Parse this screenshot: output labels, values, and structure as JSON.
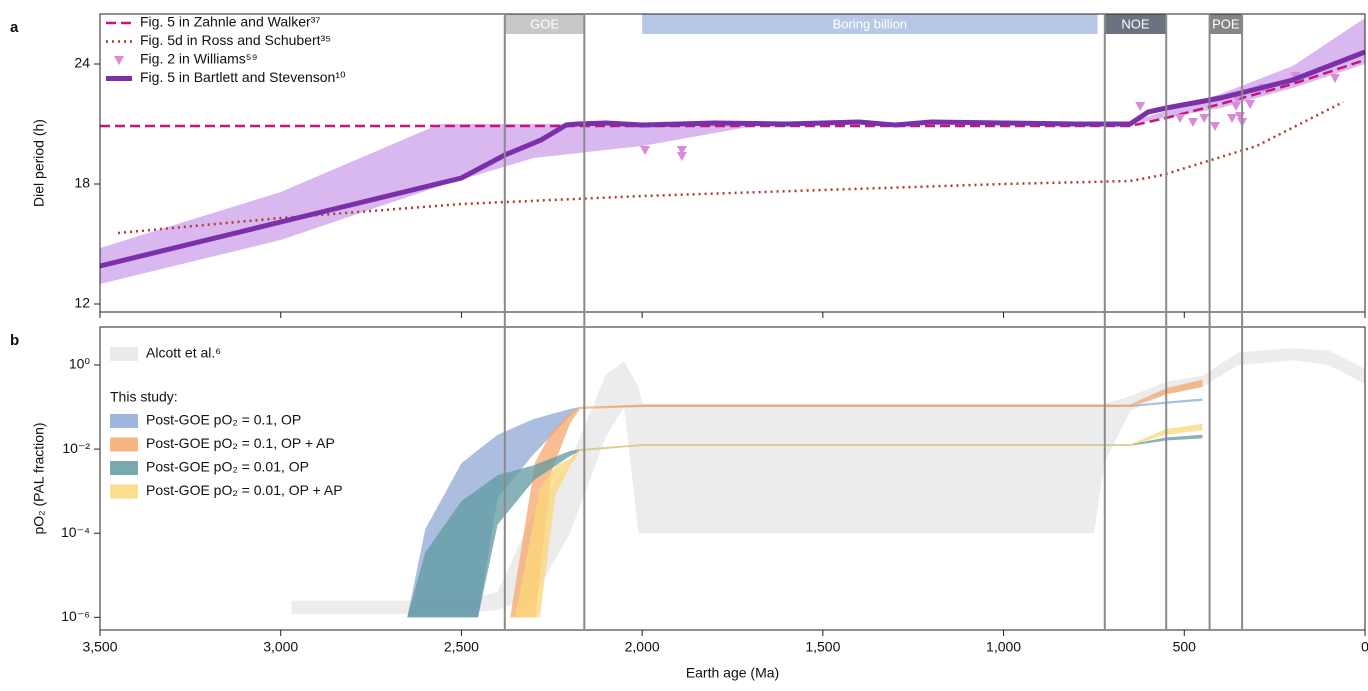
{
  "chart_data": [
    {
      "type": "line",
      "panel_label": "a",
      "ylabel": "Diel period (h)",
      "xlim": [
        3500,
        0
      ],
      "ylim": [
        11.6,
        26.5
      ],
      "yticks": [
        12,
        18,
        24
      ],
      "eras": [
        {
          "label": "GOE",
          "start": 2380,
          "end": 2160,
          "color": "#c8c8c8",
          "boundaries": true
        },
        {
          "label": "Boring billion",
          "start": 2000,
          "end": 740,
          "color": "#b7c8e6",
          "boundaries": false
        },
        {
          "label": "NOE",
          "start": 720,
          "end": 550,
          "color": "#6b7380",
          "boundaries": true
        },
        {
          "label": "POE",
          "start": 430,
          "end": 340,
          "color": "#858585",
          "boundaries": true
        }
      ],
      "series": [
        {
          "style": "band",
          "color": "#d9b8f0",
          "x": [
            3500,
            3000,
            2560,
            2300,
            2000,
            1660
          ],
          "upper": [
            14.8,
            17.6,
            21.0,
            21.0,
            21.0,
            21.0
          ],
          "lower": [
            13.0,
            15.2,
            17.9,
            19.3,
            19.9,
            21.0
          ]
        },
        {
          "style": "band",
          "color": "#d9b8f0",
          "x": [
            650,
            400,
            200,
            0
          ],
          "upper": [
            21.1,
            22.5,
            23.9,
            26.3
          ],
          "lower": [
            21.0,
            21.8,
            22.8,
            24.0
          ]
        },
        {
          "name": "Fig. 5 in Zahnle and Walker³⁷",
          "style": "dashed",
          "color": "#c8157d",
          "x": [
            3500,
            650,
            550,
            400,
            200,
            0
          ],
          "values": [
            20.9,
            20.9,
            21.3,
            22.0,
            23.0,
            24.2
          ]
        },
        {
          "name": "Fig. 5d in Ross and Schubert³⁵",
          "style": "dotted",
          "color": "#b03a2e",
          "x": [
            3450,
            3000,
            2500,
            2000,
            1500,
            1000,
            650,
            560,
            300,
            60
          ],
          "values": [
            15.55,
            16.3,
            17.0,
            17.4,
            17.7,
            18.0,
            18.15,
            18.45,
            19.9,
            22.1
          ]
        },
        {
          "name": "Fig. 2 in Williams⁵⁹",
          "style": "markers",
          "color": "#d98ad8",
          "x": [
            1992,
            1890,
            1890,
            622,
            512,
            476,
            445,
            415,
            368,
            357,
            354,
            346,
            340,
            318,
            282,
            193,
            83
          ],
          "values": [
            19.7,
            19.7,
            19.4,
            21.9,
            21.3,
            21.1,
            21.3,
            20.9,
            21.3,
            21.9,
            22.3,
            21.4,
            21.1,
            22.0,
            22.8,
            23.4,
            23.3
          ]
        },
        {
          "name": "Fig. 5 in Bartlett and Stevenson¹⁰",
          "style": "solid",
          "color": "#7b2fa8",
          "x": [
            3500,
            3000,
            2500,
            2380,
            2280,
            2210,
            2180,
            2100,
            2000,
            1800,
            1600,
            1400,
            1300,
            1200,
            1000,
            800,
            650,
            600,
            550,
            400,
            200,
            0
          ],
          "values": [
            13.9,
            16.1,
            18.3,
            19.45,
            20.2,
            20.95,
            21.0,
            21.05,
            20.95,
            21.05,
            21.0,
            21.1,
            20.95,
            21.1,
            21.05,
            21.0,
            21.0,
            21.6,
            21.8,
            22.3,
            23.2,
            24.6
          ]
        }
      ]
    },
    {
      "type": "area",
      "panel_label": "b",
      "ylabel": "pO₂ (PAL fraction)",
      "xlabel": "Earth age (Ma)",
      "xlim": [
        3500,
        0
      ],
      "xticks": [
        {
          "value": 3500,
          "label": "3,500"
        },
        {
          "value": 3000,
          "label": "3,000"
        },
        {
          "value": 2500,
          "label": "2,500"
        },
        {
          "value": 2000,
          "label": "2,000"
        },
        {
          "value": 1500,
          "label": "1,500"
        },
        {
          "value": 1000,
          "label": "1,000"
        },
        500,
        0
      ],
      "ylim": [
        5e-07,
        8
      ],
      "ylog": true,
      "yticks": [
        {
          "value": 1,
          "label": "10⁰"
        },
        {
          "value": 0.01,
          "label": "10⁻²"
        },
        {
          "value": 0.0001,
          "label": "10⁻⁴"
        },
        {
          "value": 1e-06,
          "label": "10⁻⁶"
        }
      ],
      "legend_heading": "This study:",
      "series": [
        {
          "name": "Alcott et al.⁶",
          "color": "#e6e6e6",
          "x": [
            2970,
            2500,
            2400,
            2300,
            2200,
            2100,
            2050,
            2010,
            2000,
            1500,
            750,
            720,
            650,
            550,
            450,
            350,
            200,
            100,
            0
          ],
          "lower": [
            1.2e-06,
            1.2e-06,
            1.5e-06,
            3e-06,
            0.0001,
            0.02,
            0.1,
            0.0001,
            0.0001,
            0.0001,
            0.0001,
            0.005,
            0.08,
            0.2,
            0.3,
            1.0,
            1.3,
            1.0,
            0.35
          ],
          "upper": [
            2.5e-06,
            2.5e-06,
            4e-06,
            0.0003,
            0.005,
            0.6,
            1.2,
            0.3,
            0.12,
            0.12,
            0.12,
            0.12,
            0.18,
            0.4,
            0.55,
            2.0,
            2.5,
            2.2,
            0.8
          ]
        },
        {
          "name": "Post-GOE pO₂ = 0.1, OP",
          "color": "#8fa8d6",
          "x": [
            2650,
            2600,
            2500,
            2454,
            2400,
            2300,
            2200,
            2172,
            2000,
            1500,
            1000,
            650,
            550,
            450
          ],
          "upper": [
            1e-06,
            0.000125,
            0.0046,
            0.0095,
            0.022,
            0.052,
            0.09,
            0.1,
            0.11,
            0.11,
            0.11,
            0.11,
            0.135,
            0.16
          ],
          "lower": [
            1e-06,
            1e-06,
            1e-06,
            1e-06,
            0.0007,
            0.0076,
            0.06,
            0.1,
            0.1,
            0.1,
            0.1,
            0.1,
            0.12,
            0.14
          ]
        },
        {
          "name": "Post-GOE pO₂ = 0.1, OP + AP",
          "color": "#f5a76c",
          "x": [
            2365,
            2296,
            2250,
            2200,
            2172,
            2000,
            1500,
            1000,
            650,
            550,
            450
          ],
          "upper": [
            1e-06,
            0.0049,
            0.026,
            0.072,
            0.1,
            0.115,
            0.115,
            0.115,
            0.115,
            0.28,
            0.45
          ],
          "lower": [
            1e-06,
            1e-06,
            0.003,
            0.04,
            0.09,
            0.1,
            0.1,
            0.1,
            0.1,
            0.2,
            0.3
          ]
        },
        {
          "name": "Post-GOE pO₂ = 0.01, OP",
          "color": "#5f9aa0",
          "x": [
            2650,
            2600,
            2500,
            2454,
            2400,
            2300,
            2200,
            2172,
            2000,
            1500,
            1000,
            650,
            550,
            450
          ],
          "upper": [
            1e-06,
            3.5e-05,
            0.00058,
            0.0011,
            0.0024,
            0.0041,
            0.009,
            0.01,
            0.013,
            0.013,
            0.013,
            0.013,
            0.019,
            0.022
          ],
          "lower": [
            1e-06,
            1e-06,
            1e-06,
            1e-06,
            0.00016,
            0.0018,
            0.0068,
            0.009,
            0.012,
            0.012,
            0.012,
            0.012,
            0.016,
            0.018
          ]
        },
        {
          "name": "Post-GOE pO₂ = 0.01, OP + AP",
          "color": "#fcd77a",
          "x": [
            2352,
            2283,
            2240,
            2200,
            2172,
            2000,
            1500,
            1000,
            650,
            550,
            450
          ],
          "upper": [
            1e-06,
            0.0011,
            0.004,
            0.0058,
            0.01,
            0.013,
            0.013,
            0.013,
            0.013,
            0.03,
            0.04
          ],
          "lower": [
            1e-06,
            1e-06,
            0.0008,
            0.0039,
            0.009,
            0.012,
            0.012,
            0.012,
            0.012,
            0.022,
            0.028
          ]
        }
      ]
    }
  ]
}
